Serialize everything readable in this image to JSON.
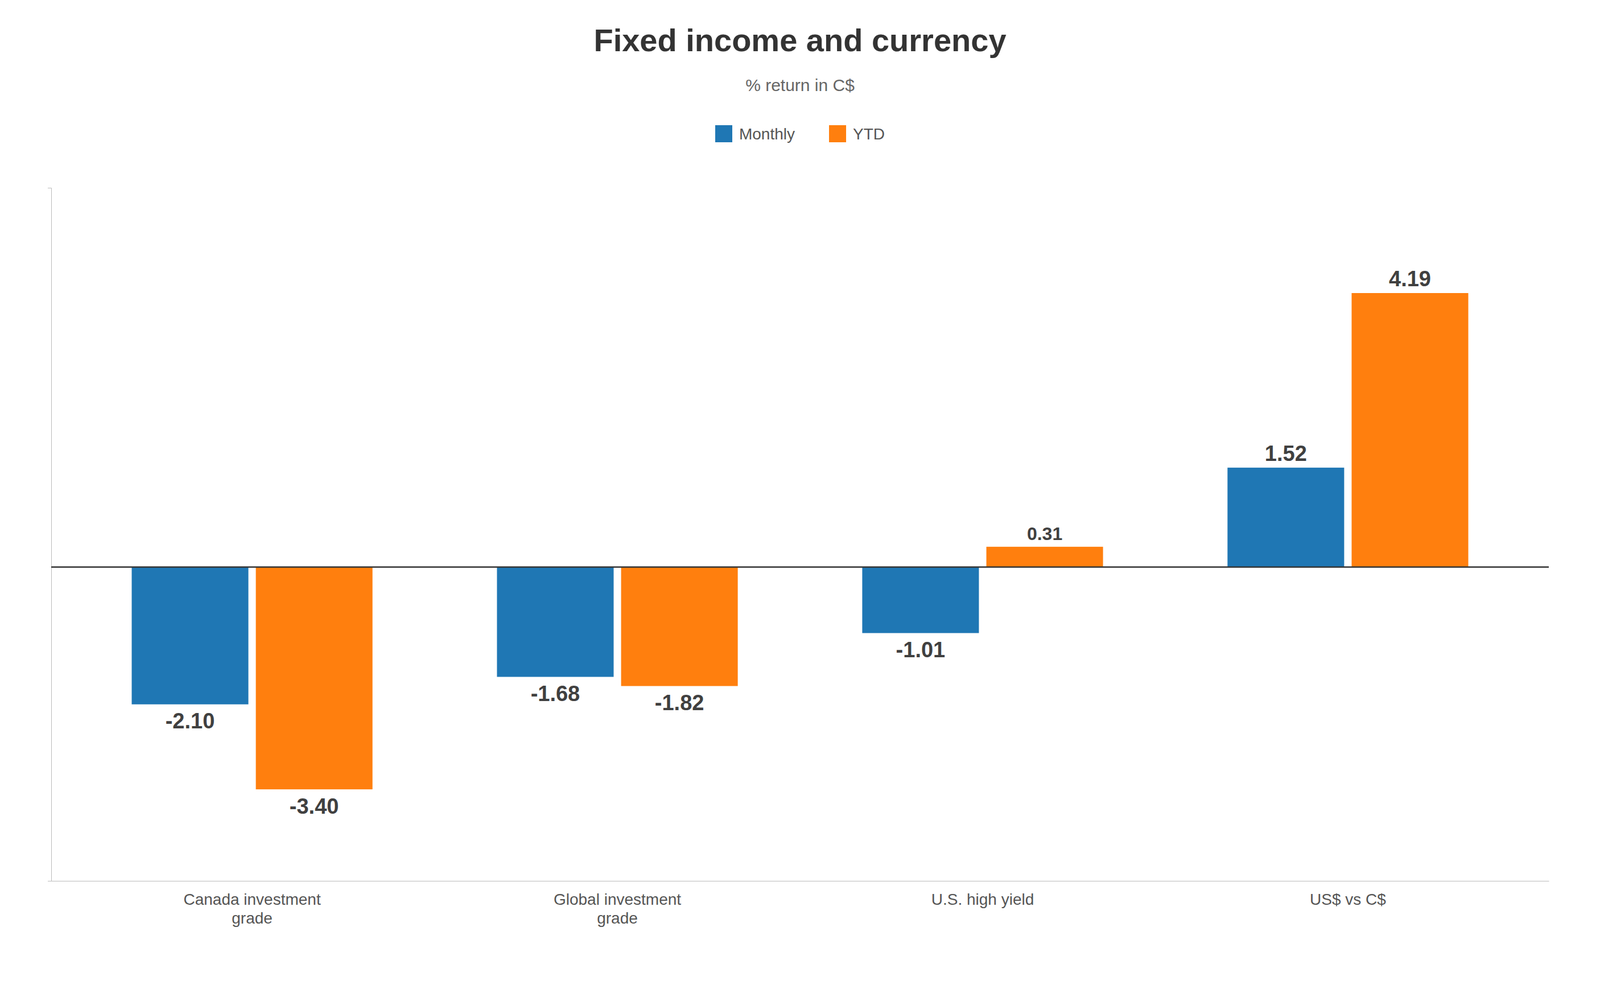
{
  "chart_data": {
    "type": "bar",
    "title": "Fixed income and currency",
    "subtitle": "% return in C$",
    "categories": [
      "Canada investment\ngrade",
      "Global investment\ngrade",
      "U.S. high yield",
      "US$ vs C$"
    ],
    "series": [
      {
        "name": "Monthly",
        "values": [
          -2.1,
          -1.68,
          -1.01,
          1.52
        ],
        "value_labels": [
          "-2.10",
          "-1.68",
          "-1.01",
          "1.52"
        ]
      },
      {
        "name": "YTD",
        "values": [
          -3.4,
          -1.82,
          0.31,
          4.19
        ],
        "value_labels": [
          "-3.40",
          "-1.82",
          "0.31",
          "4.19"
        ]
      }
    ],
    "ylim": [
      -4.8,
      5.8
    ],
    "yticks": [],
    "tick_labels": "x",
    "data_labels": true,
    "legend": "top",
    "grid": false
  }
}
